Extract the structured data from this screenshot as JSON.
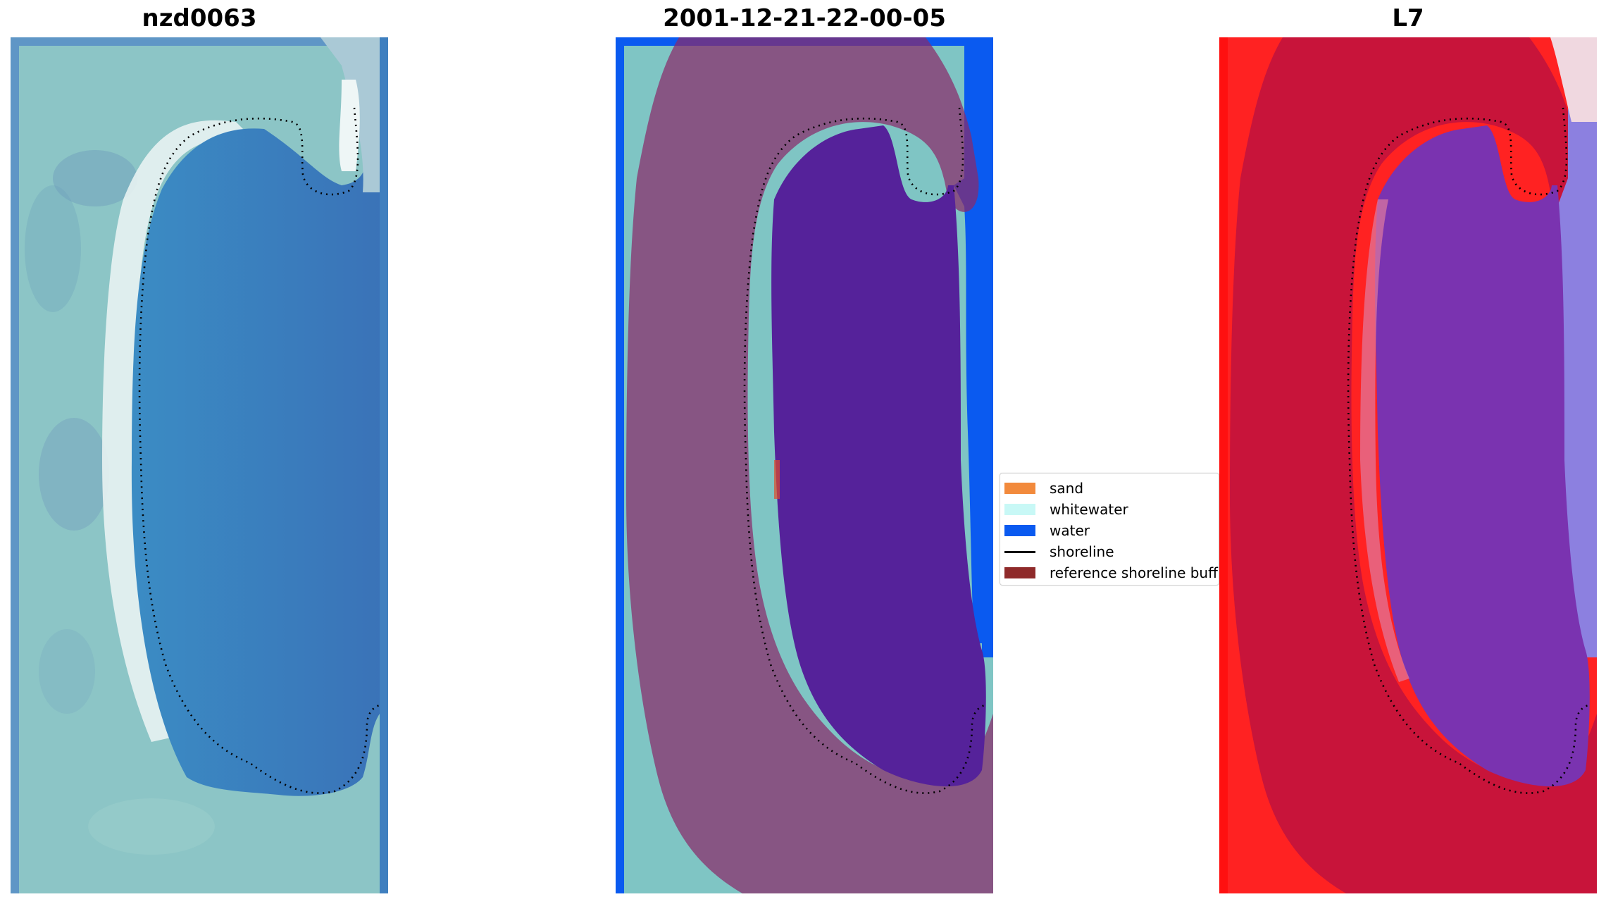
{
  "panels": [
    {
      "title": "nzd0063"
    },
    {
      "title": "2001-12-21-22-00-05"
    },
    {
      "title": "L7"
    }
  ],
  "legend": {
    "items": [
      {
        "label": "sand",
        "color": "#f28a3c",
        "kind": "patch"
      },
      {
        "label": "whitewater",
        "color": "#c8f8f6",
        "kind": "patch"
      },
      {
        "label": "water",
        "color": "#0a5af0",
        "kind": "patch"
      },
      {
        "label": "shoreline",
        "color": "#000000",
        "kind": "line"
      },
      {
        "label": "reference shoreline buffer",
        "color": "#8f2a2a",
        "kind": "patch"
      }
    ]
  },
  "colors": {
    "rgb_land": "#8fc8c8",
    "rgb_water": "#3f7fbf",
    "buffer_overlay": "#8b2a6a",
    "water_class": "#0a5af0",
    "lagoon_class": "#55229a",
    "index_land": "#c8143a",
    "index_water": "#8c80e0"
  }
}
